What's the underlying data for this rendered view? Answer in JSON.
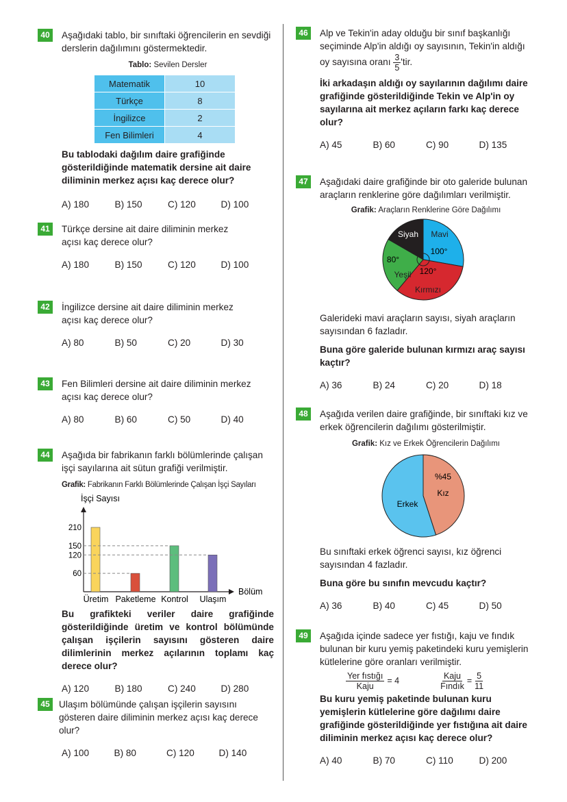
{
  "q40": {
    "num": "40",
    "text": "Aşağıdaki tablo, bir sınıftaki öğrencilerin en sevdiği derslerin dağılımını göstermektedir.",
    "caption_bold": "Tablo:",
    "caption": "Sevilen Dersler",
    "table": [
      [
        "Matematik",
        "10"
      ],
      [
        "Türkçe",
        "8"
      ],
      [
        "İngilizce",
        "2"
      ],
      [
        "Fen Bilimleri",
        "4"
      ]
    ],
    "question": "Bu tablodaki dağılım daire grafiğinde gösterildiğinde matematik dersine ait daire diliminin merkez açısı kaç derece olur?",
    "options": [
      "A) 180",
      "B) 150",
      "C) 120",
      "D) 100"
    ]
  },
  "q41": {
    "num": "41",
    "text": "Türkçe dersine ait daire diliminin merkez açısı kaç derece olur?",
    "options": [
      "A) 180",
      "B) 150",
      "C) 120",
      "D) 100"
    ]
  },
  "q42": {
    "num": "42",
    "text": "İngilizce dersine ait daire diliminin merkez açısı kaç derece olur?",
    "options": [
      "A) 80",
      "B) 50",
      "C) 20",
      "D) 30"
    ]
  },
  "q43": {
    "num": "43",
    "text": "Fen Bilimleri dersine ait daire diliminin merkez açısı kaç derece olur?",
    "options": [
      "A) 80",
      "B) 60",
      "C) 50",
      "D) 40"
    ]
  },
  "q44": {
    "num": "44",
    "text": "Aşağıda bir fabrikanın farklı bölümlerinde çalışan işçi sayılarına ait sütun grafiği verilmiştir.",
    "caption_bold": "Grafik:",
    "caption": "Fabrikanın Farklı Bölümlerinde Çalışan İşçi Sayıları",
    "question": "Bu grafikteki veriler daire grafiğinde gösterildiğinde üretim ve kontrol bölümünde çalışan işçilerin sayısını gösteren daire dilimlerinin merkez açılarının toplamı kaç derece olur?",
    "options": [
      "A) 120",
      "B) 180",
      "C) 240",
      "D) 280"
    ]
  },
  "q45": {
    "num": "45",
    "text": "Ulaşım bölümünde çalışan işçilerin sayısını gösteren daire diliminin merkez açısı kaç derece olur?",
    "options": [
      "A) 100",
      "B) 80",
      "C) 120",
      "D) 140"
    ]
  },
  "q46": {
    "num": "46",
    "text": "Alp ve Tekin'in aday olduğu bir sınıf başkanlığı seçiminde Alp'in aldığı oy sayısının, Tekin'in aldığı oy sayısına oranı",
    "frac_n": "3",
    "frac_d": "5",
    "suffix": "'tir.",
    "question": "İki arkadaşın aldığı oy sayılarının dağılımı daire grafiğinde gösterildiğinde Tekin ve Alp'in oy sayılarına ait merkez açıların farkı kaç derece olur?",
    "options": [
      "A) 45",
      "B) 60",
      "C) 90",
      "D) 135"
    ]
  },
  "q47": {
    "num": "47",
    "text": "Aşağıdaki daire grafiğinde bir oto galeride bulunan araçların renklerine göre dağılımları verilmiştir.",
    "caption_bold": "Grafik:",
    "caption": "Araçların Renklerine Göre Dağılımı",
    "text2": "Galerideki mavi araçların sayısı, siyah araçların sayısından 6 fazladır.",
    "question": "Buna göre galeride bulunan kırmızı araç sayısı kaçtır?",
    "options": [
      "A) 36",
      "B) 24",
      "C) 20",
      "D) 18"
    ]
  },
  "q48": {
    "num": "48",
    "text": "Aşağıda verilen daire grafiğinde, bir sınıftaki kız ve erkek öğrencilerin dağılımı gösterilmiştir.",
    "caption_bold": "Grafik:",
    "caption": "Kız ve Erkek Öğrencilerin Dağılımı",
    "text2": "Bu sınıftaki erkek öğrenci sayısı, kız öğrenci sayısından 4 fazladır.",
    "question": "Buna göre bu sınıfın mevcudu kaçtır?",
    "options": [
      "A) 36",
      "B) 40",
      "C) 45",
      "D) 50"
    ]
  },
  "q49": {
    "num": "49",
    "text": "Aşağıda içinde sadece yer fıstığı, kaju ve fındık bulunan bir kuru yemiş paketindeki kuru yemişlerin kütlelerine göre oranları verilmiştir.",
    "r1_n": "Yer fıstığı",
    "r1_d": "Kaju",
    "r1_v": "= 4",
    "r2_n": "Kaju",
    "r2_d": "Fındık",
    "r2_eq": "=",
    "r2_vn": "5",
    "r2_vd": "11",
    "question": "Bu kuru yemiş paketinde bulunan kuru yemişlerin kütlelerine göre dağılımı daire grafiğinde gösterildiğinde yer fıstığına ait daire diliminin merkez açısı kaç derece olur?",
    "options": [
      "A) 40",
      "B) 70",
      "C) 110",
      "D) 200"
    ]
  },
  "chart_data": [
    {
      "type": "bar",
      "ylabel": "İşçi Sayısı",
      "xlabel": "Bölüm",
      "categories": [
        "Üretim",
        "Paketleme",
        "Kontrol",
        "Ulaşım"
      ],
      "values": [
        210,
        60,
        150,
        120
      ],
      "yticks": [
        60,
        120,
        150,
        210
      ],
      "colors": [
        "#f9d45c",
        "#d9503b",
        "#5dbd7d",
        "#7b6fb8"
      ],
      "grid": "dashed reference lines"
    },
    {
      "type": "pie",
      "labels": [
        "Mavi",
        "Kırmızı",
        "Yeşil",
        "Siyah"
      ],
      "angles": [
        100,
        120,
        80,
        60
      ],
      "angle_labels": [
        "100°",
        "120°",
        "80°",
        ""
      ],
      "colors": [
        "#1eb0ea",
        "#d6282f",
        "#3fae49",
        "#231f20"
      ]
    },
    {
      "type": "pie",
      "labels": [
        "Kız",
        "Erkek"
      ],
      "values": [
        45,
        55
      ],
      "value_labels": [
        "%45",
        ""
      ],
      "colors": [
        "#e8957a",
        "#5ac3ee"
      ]
    }
  ]
}
